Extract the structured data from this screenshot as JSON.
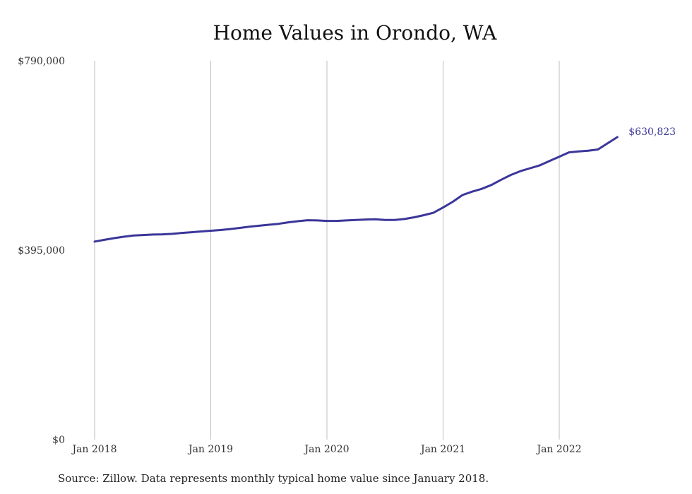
{
  "chart_data": {
    "type": "line",
    "title": "Home Values in Orondo, WA",
    "xlabel": "",
    "ylabel": "",
    "x_tick_labels": [
      "Jan 2018",
      "Jan 2019",
      "Jan 2020",
      "Jan 2021",
      "Jan 2022"
    ],
    "y_tick_labels": [
      "$790,000",
      "$395,000",
      "$0"
    ],
    "ylim": [
      0,
      790000
    ],
    "grid": "vertical",
    "line_color": "#3b3699",
    "end_label": "$630,823",
    "series": [
      {
        "x": [
          "2018-01",
          "2018-02",
          "2018-03",
          "2018-04",
          "2018-05",
          "2018-06",
          "2018-07",
          "2018-08",
          "2018-09",
          "2018-10",
          "2018-11",
          "2018-12",
          "2019-01",
          "2019-02",
          "2019-03",
          "2019-04",
          "2019-05",
          "2019-06",
          "2019-07",
          "2019-08",
          "2019-09",
          "2019-10",
          "2019-11",
          "2019-12",
          "2020-01",
          "2020-02",
          "2020-03",
          "2020-04",
          "2020-05",
          "2020-06",
          "2020-07",
          "2020-08",
          "2020-09",
          "2020-10",
          "2020-11",
          "2020-12",
          "2021-01",
          "2021-02",
          "2021-03",
          "2021-04",
          "2021-05",
          "2021-06",
          "2021-07",
          "2021-08",
          "2021-09",
          "2021-10",
          "2021-11",
          "2021-12",
          "2022-01",
          "2022-02",
          "2022-03",
          "2022-04",
          "2022-05",
          "2022-06",
          "2022-07"
        ],
        "values": [
          413000,
          416500,
          420000,
          423000,
          425500,
          426500,
          427500,
          428000,
          429000,
          431000,
          432500,
          434000,
          435500,
          437000,
          439000,
          441500,
          444000,
          446000,
          448000,
          450000,
          453000,
          455500,
          457500,
          457000,
          456000,
          456000,
          457000,
          458000,
          459000,
          459500,
          458000,
          458000,
          460000,
          463500,
          468000,
          473000,
          484000,
          496000,
          510000,
          517000,
          523000,
          531000,
          542000,
          552000,
          560000,
          566000,
          572000,
          581000,
          590000,
          599000,
          601000,
          602500,
          605000,
          618000,
          630823
        ]
      }
    ]
  },
  "source_note": "Source: Zillow. Data represents monthly typical home value since January 2018."
}
